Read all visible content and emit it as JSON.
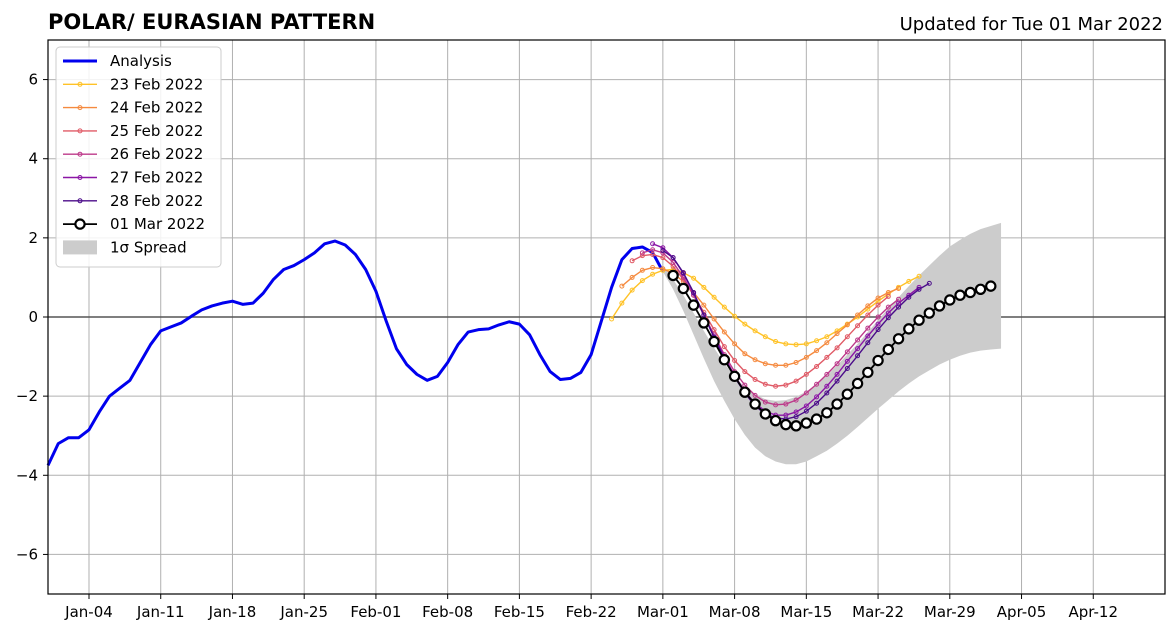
{
  "title_left": "POLAR/ EURASIAN  PATTERN",
  "title_right": "Updated for Tue 01 Mar 2022",
  "chart_data": {
    "type": "line",
    "x_unit": "date",
    "xlim": [
      "2021-12-31",
      "2022-04-19"
    ],
    "ylim": [
      -7,
      7
    ],
    "yticks": [
      -6,
      -4,
      -2,
      0,
      2,
      4,
      6
    ],
    "ytick_labels": [
      "−6",
      "−4",
      "−2",
      "0",
      "2",
      "4",
      "6"
    ],
    "xticks": [
      "2022-01-04",
      "2022-01-11",
      "2022-01-18",
      "2022-01-25",
      "2022-02-01",
      "2022-02-08",
      "2022-02-15",
      "2022-02-22",
      "2022-03-01",
      "2022-03-08",
      "2022-03-15",
      "2022-03-22",
      "2022-03-29",
      "2022-04-05",
      "2022-04-12"
    ],
    "xtick_labels": [
      "Jan-04",
      "Jan-11",
      "Jan-18",
      "Jan-25",
      "Feb-01",
      "Feb-08",
      "Feb-15",
      "Feb-22",
      "Mar-01",
      "Mar-08",
      "Mar-15",
      "Mar-22",
      "Mar-29",
      "Apr-05",
      "Apr-12"
    ],
    "grid": true,
    "zero_line": true,
    "legend_position": "top-left",
    "analysis": {
      "name": "Analysis",
      "color": "#0000ee",
      "start": "2021-12-31",
      "values": [
        -3.75,
        -3.2,
        -3.05,
        -3.05,
        -2.85,
        -2.4,
        -2.0,
        -1.8,
        -1.6,
        -1.15,
        -0.7,
        -0.35,
        -0.25,
        -0.15,
        0.02,
        0.18,
        0.28,
        0.35,
        0.4,
        0.32,
        0.35,
        0.6,
        0.95,
        1.2,
        1.3,
        1.45,
        1.62,
        1.85,
        1.92,
        1.82,
        1.58,
        1.2,
        0.65,
        -0.1,
        -0.8,
        -1.2,
        -1.45,
        -1.6,
        -1.5,
        -1.15,
        -0.7,
        -0.38,
        -0.32,
        -0.3,
        -0.2,
        -0.12,
        -0.18,
        -0.45,
        -0.95,
        -1.38,
        -1.58,
        -1.55,
        -1.4,
        -0.95,
        -0.1,
        0.75,
        1.45,
        1.73,
        1.77,
        1.63,
        1.15
      ]
    },
    "forecasts": [
      {
        "name": "23 Feb 2022",
        "color": "#ffc226",
        "start": "2022-02-24",
        "values": [
          -0.05,
          0.35,
          0.68,
          0.92,
          1.08,
          1.18,
          1.2,
          1.12,
          0.98,
          0.75,
          0.5,
          0.25,
          0.02,
          -0.18,
          -0.35,
          -0.5,
          -0.62,
          -0.68,
          -0.7,
          -0.68,
          -0.6,
          -0.5,
          -0.35,
          -0.18,
          0.0,
          0.2,
          0.4,
          0.58,
          0.75,
          0.9,
          1.03
        ]
      },
      {
        "name": "24 Feb 2022",
        "color": "#f58a3f",
        "start": "2022-02-25",
        "values": [
          0.78,
          1.0,
          1.18,
          1.25,
          1.22,
          1.1,
          0.9,
          0.62,
          0.3,
          -0.05,
          -0.38,
          -0.68,
          -0.93,
          -1.08,
          -1.18,
          -1.22,
          -1.22,
          -1.15,
          -1.02,
          -0.85,
          -0.65,
          -0.42,
          -0.2,
          0.05,
          0.28,
          0.48,
          0.62,
          0.72
        ]
      },
      {
        "name": "25 Feb 2022",
        "color": "#e05a66",
        "start": "2022-02-26",
        "values": [
          1.42,
          1.55,
          1.58,
          1.5,
          1.28,
          0.95,
          0.55,
          0.12,
          -0.32,
          -0.75,
          -1.1,
          -1.38,
          -1.58,
          -1.7,
          -1.75,
          -1.72,
          -1.62,
          -1.45,
          -1.25,
          -1.02,
          -0.78,
          -0.5,
          -0.22,
          0.05,
          0.3,
          0.52
        ]
      },
      {
        "name": "26 Feb 2022",
        "color": "#bd3a8a",
        "start": "2022-02-27",
        "values": [
          1.62,
          1.7,
          1.62,
          1.38,
          1.0,
          0.55,
          0.05,
          -0.45,
          -0.95,
          -1.38,
          -1.72,
          -1.98,
          -2.15,
          -2.22,
          -2.2,
          -2.1,
          -1.92,
          -1.7,
          -1.45,
          -1.18,
          -0.88,
          -0.58,
          -0.28,
          0.0,
          0.25,
          0.45
        ]
      },
      {
        "name": "27 Feb 2022",
        "color": "#8b16a6",
        "start": "2022-02-28",
        "values": [
          1.85,
          1.75,
          1.5,
          1.1,
          0.6,
          0.05,
          -0.5,
          -1.0,
          -1.48,
          -1.88,
          -2.18,
          -2.38,
          -2.48,
          -2.48,
          -2.4,
          -2.25,
          -2.02,
          -1.75,
          -1.45,
          -1.12,
          -0.8,
          -0.48,
          -0.18,
          0.1,
          0.35,
          0.55,
          0.75
        ]
      },
      {
        "name": "28 Feb 2022",
        "color": "#4b0c8a",
        "start": "2022-03-01",
        "values": [
          1.68,
          1.5,
          1.12,
          0.62,
          0.05,
          -0.52,
          -1.05,
          -1.52,
          -1.92,
          -2.25,
          -2.45,
          -2.55,
          -2.58,
          -2.52,
          -2.38,
          -2.18,
          -1.92,
          -1.62,
          -1.3,
          -0.98,
          -0.65,
          -0.32,
          -0.02,
          0.25,
          0.5,
          0.7,
          0.85
        ]
      }
    ],
    "current": {
      "name": "01 Mar 2022",
      "color": "#000000",
      "start": "2022-03-02",
      "values": [
        1.05,
        0.72,
        0.3,
        -0.15,
        -0.62,
        -1.08,
        -1.5,
        -1.9,
        -2.2,
        -2.45,
        -2.62,
        -2.72,
        -2.75,
        -2.68,
        -2.58,
        -2.42,
        -2.2,
        -1.95,
        -1.68,
        -1.4,
        -1.1,
        -0.82,
        -0.55,
        -0.3,
        -0.08,
        0.1,
        0.28,
        0.43,
        0.55,
        0.62,
        0.7,
        0.78
      ]
    },
    "spread": {
      "name": "1σ Spread",
      "color": "#cccccc",
      "start": "2022-03-01",
      "upper": [
        1.3,
        0.95,
        0.55,
        0.1,
        -0.35,
        -0.78,
        -1.18,
        -1.5,
        -1.78,
        -1.95,
        -2.08,
        -2.12,
        -2.1,
        -2.02,
        -1.88,
        -1.7,
        -1.48,
        -1.22,
        -0.95,
        -0.68,
        -0.38,
        -0.08,
        0.22,
        0.5,
        0.78,
        1.05,
        1.3,
        1.55,
        1.78,
        1.95,
        2.1,
        2.22,
        2.3,
        2.38
      ],
      "lower": [
        1.15,
        0.7,
        0.15,
        -0.45,
        -1.05,
        -1.62,
        -2.12,
        -2.58,
        -2.98,
        -3.3,
        -3.52,
        -3.65,
        -3.72,
        -3.72,
        -3.65,
        -3.52,
        -3.38,
        -3.2,
        -3.0,
        -2.78,
        -2.55,
        -2.32,
        -2.1,
        -1.88,
        -1.68,
        -1.5,
        -1.35,
        -1.2,
        -1.08,
        -0.98,
        -0.9,
        -0.85,
        -0.82,
        -0.8
      ]
    }
  }
}
